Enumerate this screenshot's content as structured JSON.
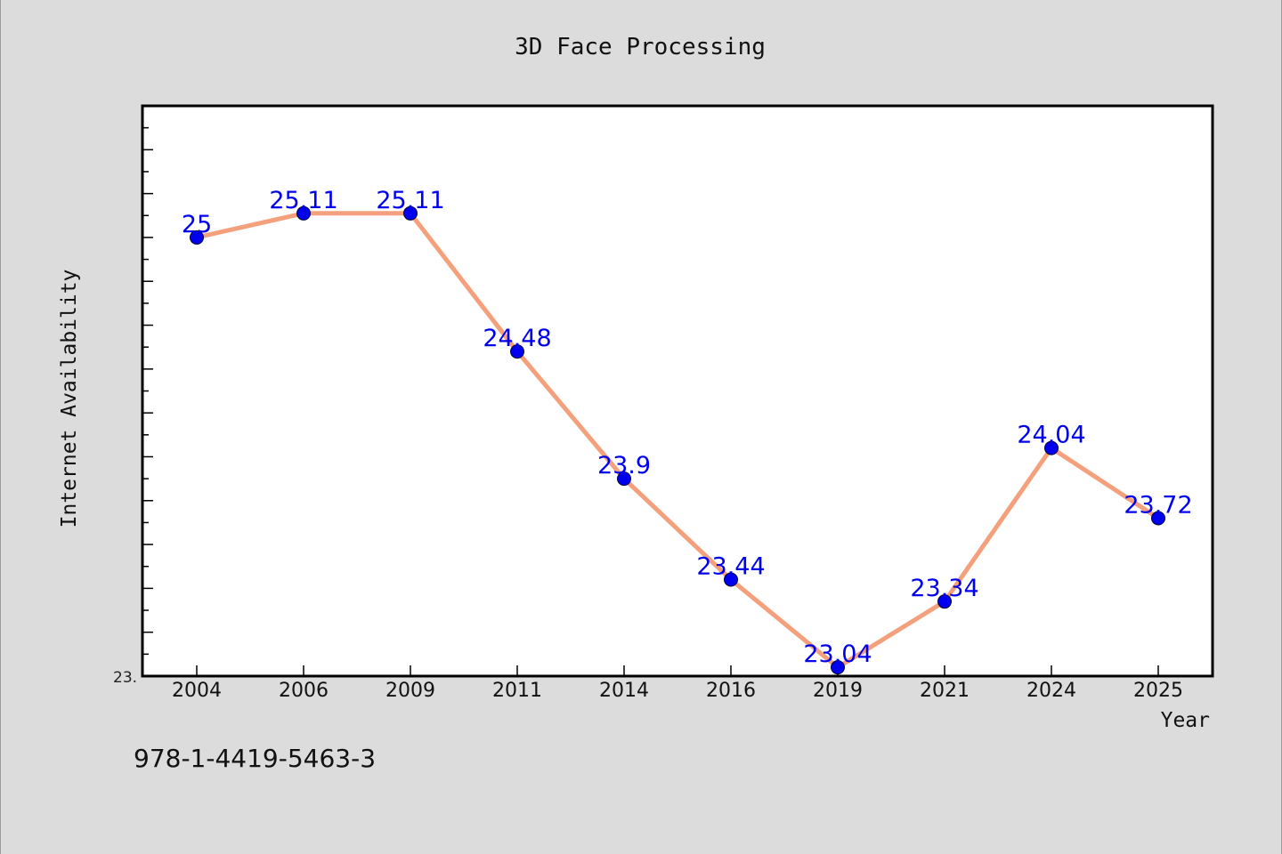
{
  "chart_data": {
    "type": "line",
    "title": "3D Face Processing",
    "xlabel": "Year",
    "ylabel": "Internet Availability",
    "categories": [
      "2004",
      "2006",
      "2009",
      "2011",
      "2014",
      "2016",
      "2019",
      "2021",
      "2024",
      "2025"
    ],
    "series": [
      {
        "values": [
          25,
          25.11,
          25.11,
          24.48,
          23.9,
          23.44,
          23.04,
          23.34,
          24.04,
          23.72
        ],
        "labels": [
          "25",
          "25.11",
          "25.11",
          "24.48",
          "23.9",
          "23.44",
          "23.04",
          "23.34",
          "24.04",
          "23.72"
        ]
      }
    ],
    "y_tick_labels": [
      "23."
    ],
    "ylim": [
      23.0,
      25.6
    ],
    "grid": false,
    "line_color": "#f4a07c",
    "marker_color": "#0000ee",
    "label_color": "#0000ee"
  },
  "footer": {
    "isbn": "978-1-4419-5463-3"
  }
}
